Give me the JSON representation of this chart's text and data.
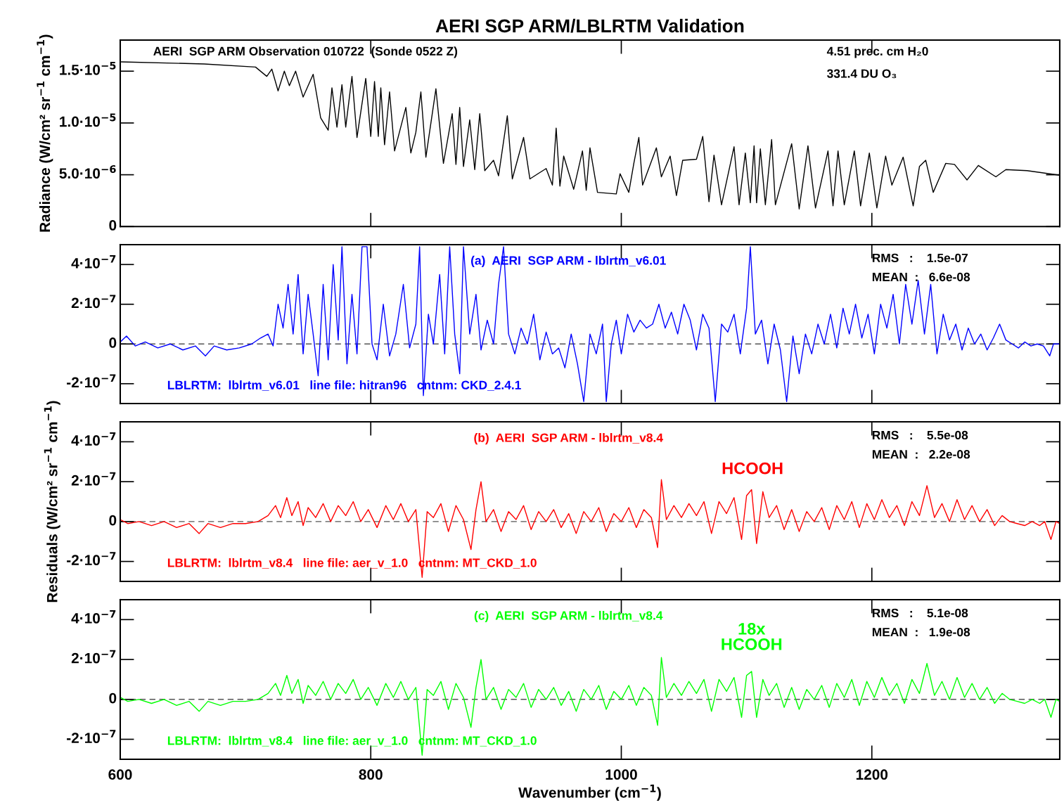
{
  "chart_data": [
    {
      "type": "line",
      "title": "AERI SGP ARM/LBLRTM Validation",
      "ylabel": "Radiance (W/cm² sr$^{−1}$ cm$^{−1}$)",
      "annotations": [
        "AERI  SGP ARM Observation 010722  (Sonde 0522 Z)",
        "4.51 prec. cm H₂0",
        "331.4 DU O₃"
      ],
      "xlim": [
        600,
        1350
      ],
      "xticks": [
        600,
        800,
        1000,
        1200
      ],
      "ylim": [
        0,
        1.8e-05
      ],
      "yticks": [
        0,
        {
          "value": 5e-06,
          "label": "5.0·10$^{−6}$"
        },
        {
          "value": 1e-05,
          "label": "1.0·10$^{−5}$"
        },
        {
          "value": 1.5e-05,
          "label": "1.5·10$^{−5}$"
        }
      ],
      "tick_labels": "y",
      "series": [
        {
          "color": "#000000",
          "x": [
            601,
            667,
            708,
            717,
            721,
            726,
            731,
            735,
            740,
            746,
            754,
            760,
            766,
            769,
            773,
            777,
            780,
            785,
            789,
            796,
            800,
            803,
            806,
            808,
            811,
            815,
            819,
            828,
            832,
            836,
            840,
            844,
            852,
            858,
            865,
            868,
            871,
            874,
            879,
            883,
            887,
            891,
            898,
            902,
            909,
            913,
            922,
            927,
            940,
            945,
            948,
            951,
            954,
            962,
            969,
            972,
            975,
            981,
            996,
            999,
            1006,
            1010,
            1014,
            1017,
            1028,
            1032,
            1039,
            1044,
            1049,
            1060,
            1065,
            1070,
            1074,
            1080,
            1090,
            1094,
            1099,
            1103,
            1106,
            1108,
            1111,
            1115,
            1120,
            1123,
            1136,
            1142,
            1149,
            1155,
            1165,
            1169,
            1173,
            1178,
            1186,
            1191,
            1198,
            1204,
            1211,
            1216,
            1225,
            1233,
            1238,
            1243,
            1249,
            1259,
            1266,
            1276,
            1285,
            1299,
            1307,
            1324,
            1350
          ],
          "values": [
            1.59e-05,
            1.57e-05,
            1.54e-05,
            1.45e-05,
            1.52e-05,
            1.31e-05,
            1.5e-05,
            1.36e-05,
            1.5e-05,
            1.25e-05,
            1.47e-05,
            1.05e-05,
            9.3e-06,
            1.34e-05,
            9.6e-06,
            1.37e-05,
            9.6e-06,
            1.45e-05,
            8.6e-06,
            1.43e-05,
            8.7e-06,
            1.4e-05,
            8.7e-06,
            1.34e-05,
            7.9e-06,
            1.3e-05,
            7.3e-06,
            1.15e-05,
            7.1e-06,
            9.1e-06,
            1.3e-05,
            6.7e-06,
            1.33e-05,
            6.1e-06,
            1.09e-05,
            6e-06,
            1.15e-05,
            5.8e-06,
            1.03e-05,
            5.5e-06,
            1.09e-05,
            5.4e-06,
            6.4e-06,
            4.9e-06,
            1.07e-05,
            4.6e-06,
            8.6e-06,
            4.6e-06,
            5.6e-06,
            4e-06,
            9.5e-06,
            3.9e-06,
            6.8e-06,
            3.6e-06,
            7.3e-06,
            3.5e-06,
            7.6e-06,
            3.3e-06,
            3.15e-06,
            5.1e-06,
            3.3e-06,
            6.1e-06,
            8.6e-06,
            4e-06,
            7.6e-06,
            4.8e-06,
            6.8e-06,
            3e-06,
            6.4e-06,
            6.5e-06,
            8.7e-06,
            2.4e-06,
            6.9e-06,
            2.1e-06,
            7.7e-06,
            2.1e-06,
            7.1e-06,
            2.3e-06,
            7.8e-06,
            2.3e-06,
            7.5e-06,
            2.1e-06,
            8.4e-06,
            2.1e-06,
            8e-06,
            1.7e-06,
            7.8e-06,
            1.8e-06,
            7.3e-06,
            2e-06,
            7.3e-06,
            2.1e-06,
            7.3e-06,
            2e-06,
            7.1e-06,
            1.8e-06,
            6.8e-06,
            4e-06,
            6.7e-06,
            2e-06,
            5.8e-06,
            6.4e-06,
            3.3e-06,
            6.1e-06,
            6e-06,
            4.5e-06,
            5.9e-06,
            4.8e-06,
            5.5e-06,
            5.4e-06,
            4.95e-06
          ]
        }
      ]
    },
    {
      "type": "line",
      "annotations": [
        "(a)  AERI  SGP ARM - lblrtm_v6.01",
        "RMS   :    1.5e-07",
        "MEAN  :   6.6e-08",
        "LBLRTM:  lblrtm_v6.01   line file: hitran96   cntnm: CKD_2.4.1"
      ],
      "xlim": [
        600,
        1350
      ],
      "xticks": [
        600,
        800,
        1000,
        1200
      ],
      "ylim": [
        -3e-07,
        5e-07
      ],
      "yticks": [
        {
          "value": -2e-07,
          "label": "-2·10$^{−7}$"
        },
        0,
        {
          "value": 2e-07,
          "label": "2·10$^{−7}$"
        },
        {
          "value": 4e-07,
          "label": "4·10$^{−7}$"
        }
      ],
      "tick_labels": "y",
      "ref_lines": [
        {
          "axis": "y",
          "value": 0,
          "color": "#555555",
          "line_style": "dashed"
        }
      ],
      "series": [
        {
          "color": "#0000ff",
          "x": [
            600,
            605,
            612,
            620,
            630,
            640,
            650,
            660,
            668,
            675,
            685,
            695,
            705,
            712,
            718,
            722,
            726,
            730,
            734,
            738,
            742,
            746,
            750,
            754,
            758,
            762,
            766,
            770,
            774,
            777,
            781,
            785,
            789,
            793,
            797,
            801,
            805,
            810,
            815,
            820,
            826,
            831,
            836,
            839,
            842,
            846,
            850,
            855,
            859,
            863,
            867,
            871,
            874,
            879,
            884,
            888,
            893,
            898,
            902,
            906,
            910,
            915,
            920,
            925,
            930,
            935,
            940,
            945,
            950,
            955,
            960,
            965,
            970,
            975,
            980,
            985,
            988,
            992,
            996,
            1000,
            1005,
            1010,
            1015,
            1020,
            1025,
            1030,
            1035,
            1040,
            1045,
            1050,
            1055,
            1060,
            1065,
            1070,
            1075,
            1080,
            1085,
            1090,
            1095,
            1100,
            1103,
            1107,
            1112,
            1117,
            1122,
            1127,
            1132,
            1137,
            1142,
            1147,
            1152,
            1157,
            1162,
            1167,
            1172,
            1177,
            1182,
            1187,
            1192,
            1197,
            1202,
            1207,
            1212,
            1217,
            1222,
            1227,
            1232,
            1237,
            1242,
            1247,
            1252,
            1257,
            1262,
            1267,
            1272,
            1277,
            1282,
            1287,
            1292,
            1297,
            1302,
            1307,
            1312,
            1317,
            1322,
            1327,
            1332,
            1337,
            1342,
            1345,
            1350
          ],
          "values": [
            1e-08,
            4e-08,
            -1e-08,
            1e-08,
            -2e-08,
            0,
            -3e-08,
            -1e-08,
            -6e-08,
            -1e-08,
            -3e-08,
            -2e-08,
            0,
            3e-08,
            5e-08,
            -1e-08,
            2e-07,
            8e-08,
            3e-07,
            5e-08,
            3.5e-07,
            -5e-08,
            2.5e-07,
            5e-08,
            -1.6e-07,
            3e-07,
            -8e-08,
            4e-07,
            2e-08,
            4.9e-07,
            -1e-07,
            2.5e-07,
            -5e-08,
            4.9e-07,
            4.9e-07,
            0,
            -8e-08,
            2e-07,
            -6e-08,
            5e-08,
            3e-07,
            -2e-08,
            1e-07,
            4.9e-07,
            -2.6e-07,
            1.5e-07,
            0,
            3.5e-07,
            -5e-08,
            4.9e-07,
            5e-08,
            -1.5e-07,
            4.9e-07,
            5e-08,
            2.5e-07,
            -3e-08,
            1.2e-07,
            0,
            3e-07,
            4.9e-07,
            5e-08,
            -5e-08,
            8e-08,
            0,
            1.5e-07,
            -8e-08,
            6e-08,
            -5e-08,
            -2e-08,
            -1.2e-07,
            5e-08,
            -1e-07,
            -2.9e-07,
            5e-08,
            -5e-08,
            1e-07,
            -2.9e-07,
            0,
            1.2e-07,
            -5e-08,
            1.5e-07,
            6e-08,
            1.2e-07,
            8e-08,
            1e-07,
            2e-07,
            8e-08,
            1.6e-07,
            5e-08,
            2e-07,
            1.2e-07,
            -3e-08,
            1.5e-07,
            8e-08,
            -2.9e-07,
            1e-07,
            6e-08,
            1.5e-07,
            -5e-08,
            1.8e-07,
            4.9e-07,
            5e-08,
            1.2e-07,
            -1e-07,
            1e-07,
            -3e-08,
            -2.9e-07,
            4e-08,
            -1.5e-07,
            5e-08,
            -5e-08,
            1e-07,
            0,
            1.5e-07,
            -2e-08,
            1.8e-07,
            5e-08,
            2e-07,
            3e-08,
            1.5e-07,
            -5e-08,
            2e-07,
            8e-08,
            2.5e-07,
            0,
            3e-07,
            1e-07,
            3.2e-07,
            5e-08,
            3e-07,
            -5e-08,
            1.5e-07,
            2e-08,
            1e-07,
            -3e-08,
            8e-08,
            0,
            5e-08,
            -3e-08,
            3e-08,
            1e-07,
            2e-08,
            0,
            -2e-08,
            1e-08,
            -1e-08,
            0,
            -1e-08,
            -6e-08,
            0,
            0
          ]
        }
      ]
    },
    {
      "type": "line",
      "ylabel": "Residuals (W/cm² sr$^{−1}$ cm$^{−1}$)",
      "annotations": [
        "(b)  AERI  SGP ARM - lblrtm_v8.4",
        "RMS   :    5.5e-08",
        "MEAN  :   2.2e-08",
        "LBLRTM:  lblrtm_v8.4   line file: aer_v_1.0   cntnm: MT_CKD_1.0",
        "HCOOH"
      ],
      "xlim": [
        600,
        1350
      ],
      "xticks": [
        600,
        800,
        1000,
        1200
      ],
      "ylim": [
        -3e-07,
        5e-07
      ],
      "yticks": [
        {
          "value": -2e-07,
          "label": "-2·10$^{−7}$"
        },
        0,
        {
          "value": 2e-07,
          "label": "2·10$^{−7}$"
        },
        {
          "value": 4e-07,
          "label": "4·10$^{−7}$"
        }
      ],
      "tick_labels": "y",
      "ref_lines": [
        {
          "axis": "y",
          "value": 0,
          "color": "#555555",
          "line_style": "dashed"
        }
      ],
      "series": [
        {
          "color": "#ff0000",
          "x": [
            600,
            606,
            615,
            625,
            635,
            645,
            655,
            663,
            670,
            680,
            690,
            700,
            710,
            718,
            724,
            728,
            733,
            737,
            742,
            746,
            750,
            756,
            762,
            768,
            774,
            780,
            786,
            792,
            798,
            805,
            812,
            818,
            824,
            830,
            836,
            841,
            845,
            850,
            856,
            862,
            868,
            874,
            880,
            884,
            888,
            892,
            898,
            904,
            910,
            916,
            922,
            928,
            934,
            940,
            946,
            952,
            958,
            964,
            970,
            976,
            982,
            988,
            994,
            1000,
            1006,
            1012,
            1018,
            1024,
            1029,
            1032,
            1036,
            1042,
            1048,
            1054,
            1060,
            1066,
            1072,
            1078,
            1084,
            1090,
            1096,
            1100,
            1104,
            1108,
            1113,
            1118,
            1124,
            1130,
            1136,
            1142,
            1148,
            1154,
            1160,
            1166,
            1172,
            1178,
            1184,
            1190,
            1196,
            1202,
            1208,
            1214,
            1220,
            1226,
            1232,
            1238,
            1244,
            1250,
            1256,
            1262,
            1268,
            1274,
            1280,
            1286,
            1292,
            1298,
            1304,
            1310,
            1316,
            1322,
            1328,
            1334,
            1338,
            1343,
            1347,
            1350
          ],
          "values": [
            1e-08,
            -1e-08,
            0,
            -2e-08,
            0,
            -3e-08,
            -1e-08,
            -6e-08,
            -1e-08,
            -3e-08,
            -1e-08,
            -1e-08,
            0,
            3e-08,
            8e-08,
            2e-08,
            1.2e-07,
            3e-08,
            1e-07,
            -2e-08,
            7e-08,
            2e-08,
            9e-08,
            0,
            8e-08,
            3e-08,
            1e-07,
            0,
            6e-08,
            -3e-08,
            8e-08,
            1e-08,
            9e-08,
            0,
            6e-08,
            -2.8e-07,
            5e-08,
            2e-08,
            9e-08,
            -5e-08,
            8e-08,
            1e-08,
            -1.4e-07,
            6e-08,
            2e-07,
            0,
            6e-08,
            -5e-08,
            5e-08,
            1e-08,
            8e-08,
            -4e-08,
            5e-08,
            0,
            6e-08,
            -3e-08,
            4e-08,
            -6e-08,
            5e-08,
            0,
            7e-08,
            -5e-08,
            4e-08,
            0,
            7e-08,
            -3e-08,
            6e-08,
            2e-08,
            -1.3e-07,
            2.1e-07,
            1e-08,
            8e-08,
            2e-08,
            9e-08,
            3e-08,
            1e-07,
            -6e-08,
            1e-07,
            4e-08,
            1.2e-07,
            -9e-08,
            1.3e-07,
            1.6e-07,
            -1.1e-07,
            1.5e-07,
            2e-08,
            8e-08,
            -4e-08,
            6e-08,
            -5e-08,
            5e-08,
            0,
            7e-08,
            -4e-08,
            8e-08,
            1e-08,
            1e-07,
            -3e-08,
            9e-08,
            1e-08,
            1.1e-07,
            2e-08,
            8e-08,
            -2e-08,
            1e-07,
            3e-08,
            1.8e-07,
            2e-08,
            9e-08,
            0,
            1.1e-07,
            1e-08,
            8e-08,
            0,
            6e-08,
            -2e-08,
            3e-08,
            0,
            -1e-08,
            -2e-08,
            0,
            -2e-08,
            0,
            -9e-08,
            0,
            -1e-08
          ]
        }
      ]
    },
    {
      "type": "line",
      "xlabel": "Wavenumber (cm$^{−1}$)",
      "annotations": [
        "(c)  AERI  SGP ARM - lblrtm_v8.4",
        "RMS   :    5.1e-08",
        "MEAN  :   1.9e-08",
        "LBLRTM:  lblrtm_v8.4   line file: aer_v_1.0   cntnm: MT_CKD_1.0",
        "18x\nHCOOH"
      ],
      "xlim": [
        600,
        1350
      ],
      "xticks": [
        600,
        800,
        1000,
        1200
      ],
      "ylim": [
        -3e-07,
        5e-07
      ],
      "yticks": [
        {
          "value": -2e-07,
          "label": "-2·10$^{−7}$"
        },
        0,
        {
          "value": 2e-07,
          "label": "2·10$^{−7}$"
        },
        {
          "value": 4e-07,
          "label": "4·10$^{−7}$"
        }
      ],
      "ref_lines": [
        {
          "axis": "y",
          "value": 0,
          "color": "#555555",
          "line_style": "dashed"
        }
      ],
      "series": [
        {
          "color": "#00ff00",
          "x": [
            600,
            606,
            615,
            625,
            635,
            645,
            655,
            663,
            670,
            680,
            690,
            700,
            710,
            718,
            724,
            728,
            733,
            737,
            742,
            746,
            750,
            756,
            762,
            768,
            774,
            780,
            786,
            792,
            798,
            805,
            812,
            818,
            824,
            830,
            836,
            841,
            845,
            850,
            856,
            862,
            868,
            874,
            880,
            884,
            888,
            892,
            898,
            904,
            910,
            916,
            922,
            928,
            934,
            940,
            946,
            952,
            958,
            964,
            970,
            976,
            982,
            988,
            994,
            1000,
            1006,
            1012,
            1018,
            1024,
            1029,
            1032,
            1036,
            1042,
            1048,
            1054,
            1060,
            1066,
            1072,
            1078,
            1084,
            1090,
            1096,
            1100,
            1104,
            1108,
            1113,
            1118,
            1124,
            1130,
            1136,
            1142,
            1148,
            1154,
            1160,
            1166,
            1172,
            1178,
            1184,
            1190,
            1196,
            1202,
            1208,
            1214,
            1220,
            1226,
            1232,
            1238,
            1244,
            1250,
            1256,
            1262,
            1268,
            1274,
            1280,
            1286,
            1292,
            1298,
            1304,
            1310,
            1316,
            1322,
            1328,
            1334,
            1338,
            1343,
            1347,
            1350
          ],
          "values": [
            1e-08,
            -1e-08,
            0,
            -2e-08,
            0,
            -3e-08,
            -1e-08,
            -6e-08,
            -1e-08,
            -3e-08,
            -1e-08,
            -1e-08,
            0,
            3e-08,
            8e-08,
            2e-08,
            1.2e-07,
            3e-08,
            1e-07,
            -2e-08,
            7e-08,
            2e-08,
            9e-08,
            0,
            8e-08,
            3e-08,
            1e-07,
            0,
            6e-08,
            -3e-08,
            8e-08,
            1e-08,
            9e-08,
            0,
            6e-08,
            -2.8e-07,
            5e-08,
            2e-08,
            9e-08,
            -5e-08,
            8e-08,
            1e-08,
            -1.4e-07,
            6e-08,
            2e-07,
            0,
            6e-08,
            -5e-08,
            5e-08,
            1e-08,
            8e-08,
            -4e-08,
            5e-08,
            0,
            6e-08,
            -3e-08,
            4e-08,
            -6e-08,
            5e-08,
            0,
            7e-08,
            -5e-08,
            4e-08,
            0,
            7e-08,
            -3e-08,
            6e-08,
            2e-08,
            -1.3e-07,
            2.1e-07,
            1e-08,
            8e-08,
            2e-08,
            9e-08,
            3e-08,
            1e-07,
            -6e-08,
            1e-07,
            4e-08,
            1.1e-07,
            -9e-08,
            1.2e-07,
            1.4e-07,
            -9e-08,
            1e-07,
            2e-08,
            8e-08,
            -4e-08,
            6e-08,
            -5e-08,
            5e-08,
            0,
            7e-08,
            -4e-08,
            8e-08,
            1e-08,
            1e-07,
            -3e-08,
            9e-08,
            1e-08,
            1.1e-07,
            2e-08,
            8e-08,
            -2e-08,
            1e-07,
            3e-08,
            1.8e-07,
            2e-08,
            9e-08,
            0,
            1.1e-07,
            1e-08,
            8e-08,
            0,
            6e-08,
            -2e-08,
            3e-08,
            0,
            -1e-08,
            -2e-08,
            0,
            -2e-08,
            0,
            -9e-08,
            0,
            -1e-08
          ]
        }
      ]
    }
  ]
}
